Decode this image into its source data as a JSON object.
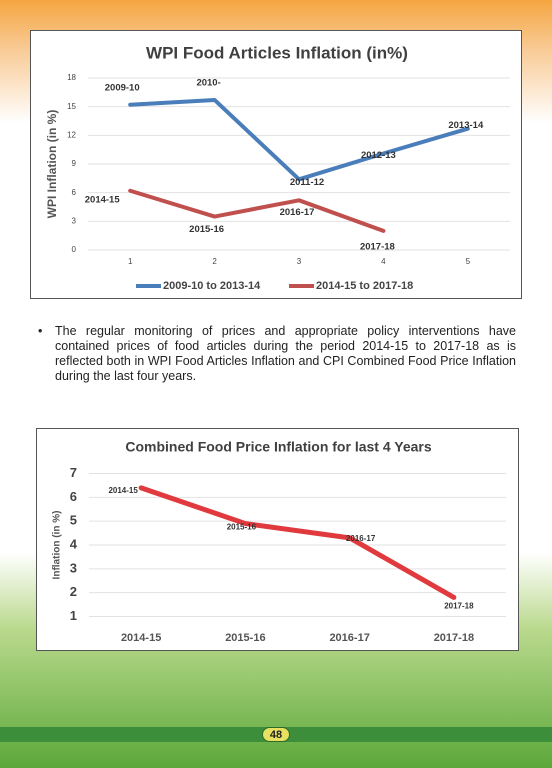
{
  "chart_data": [
    {
      "type": "line",
      "title": "WPI Food Articles Inflation (in%)",
      "y_label": "WPI Inflation (in %)",
      "x": [
        1,
        2,
        3,
        4,
        5
      ],
      "xlim": [
        0.5,
        5.5
      ],
      "xticks": [
        1,
        2,
        3,
        4,
        5
      ],
      "ylim": [
        0,
        18
      ],
      "yticks": [
        0,
        3,
        6,
        9,
        12,
        15,
        18
      ],
      "grid": true,
      "legend": "bottom",
      "series": [
        {
          "name": "2009-10 to 2013-14",
          "color": "#4a7ebb",
          "values": [
            15.2,
            15.7,
            7.4,
            10.1,
            12.7
          ],
          "point_labels": [
            "2009-10",
            "2010-",
            "2011-12",
            "2012-13",
            "2013-14"
          ]
        },
        {
          "name": "2014-15 to 2017-18",
          "color": "#c0504d",
          "values": [
            6.2,
            3.5,
            5.2,
            2.0,
            null
          ],
          "point_labels": [
            "2014-15",
            "2015-16",
            "2016-17",
            "2017-18",
            null
          ]
        }
      ]
    },
    {
      "type": "line",
      "title": "Combined Food Price Inflation for last 4 Years",
      "y_label": "Inflation (in %)",
      "categories": [
        "2014-15",
        "2015-16",
        "2016-17",
        "2017-18"
      ],
      "ylim": [
        0.6,
        7.4
      ],
      "yticks": [
        1,
        2,
        3,
        4,
        5,
        6,
        7
      ],
      "grid": true,
      "series": [
        {
          "name": null,
          "color": "#e03a3e",
          "values": [
            6.4,
            4.9,
            4.3,
            1.8
          ]
        }
      ]
    }
  ],
  "body": {
    "bullet_text": "The regular monitoring of prices and appropriate policy interventions have contained prices of food articles during the period 2014-15 to 2017-18 as is reflected both in WPI Food Articles Inflation and CPI Combined Food Price Inflation during the last four years."
  },
  "footer": {
    "page_number": "48"
  }
}
